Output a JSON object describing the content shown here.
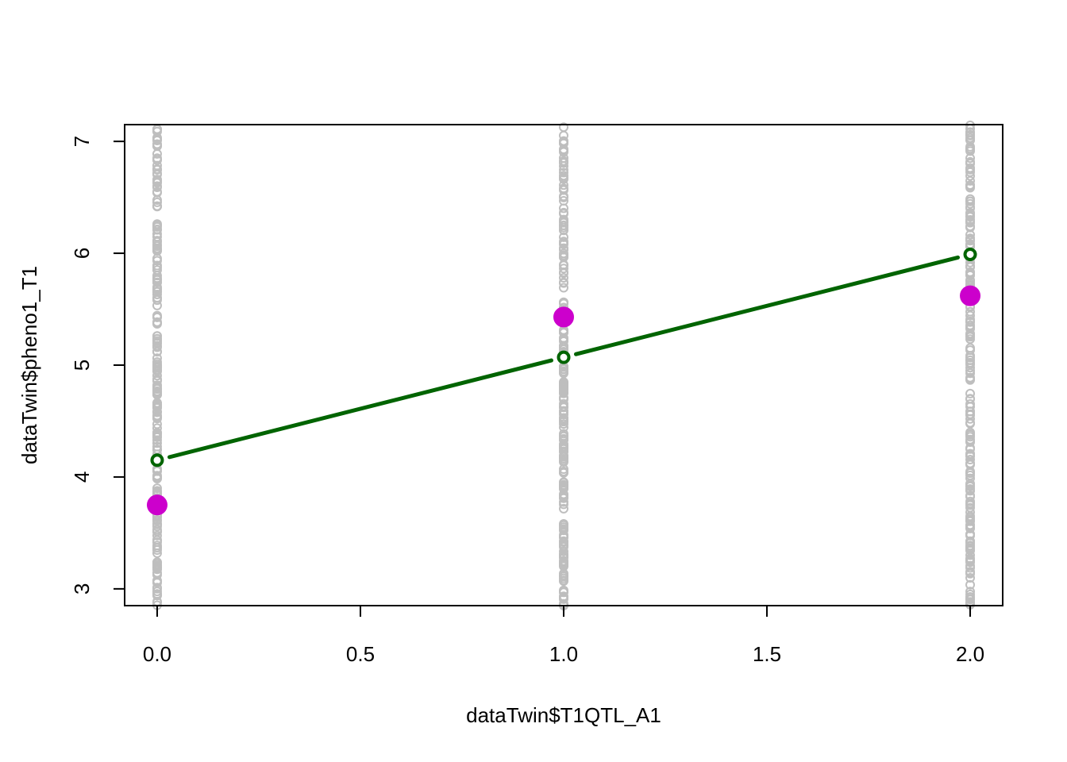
{
  "chart_data": {
    "type": "scatter",
    "title": "",
    "xlabel": "dataTwin$T1QTL_A1",
    "ylabel": "dataTwin$pheno1_T1",
    "xlim": [
      -0.08,
      2.08
    ],
    "ylim": [
      2.85,
      7.15
    ],
    "x_ticks": [
      {
        "value": 0.0,
        "label": "0.0"
      },
      {
        "value": 0.5,
        "label": "0.5"
      },
      {
        "value": 1.0,
        "label": "1.0"
      },
      {
        "value": 1.5,
        "label": "1.5"
      },
      {
        "value": 2.0,
        "label": "2.0"
      }
    ],
    "y_ticks": [
      {
        "value": 3,
        "label": "3"
      },
      {
        "value": 4,
        "label": "4"
      },
      {
        "value": 5,
        "label": "5"
      },
      {
        "value": 6,
        "label": "6"
      },
      {
        "value": 7,
        "label": "7"
      }
    ],
    "grid": false,
    "legend": "none",
    "raw_points": {
      "x_levels": [
        0,
        1,
        2
      ],
      "y_range": [
        2.85,
        7.15
      ],
      "color": "#bebebe"
    },
    "group_means": {
      "x": [
        0,
        1,
        2
      ],
      "y": [
        3.75,
        5.43,
        5.62
      ],
      "color": "#cc00cc"
    },
    "fitted_line": {
      "x": [
        0,
        1,
        2
      ],
      "y": [
        4.15,
        5.07,
        5.99
      ],
      "color": "#006400"
    }
  }
}
